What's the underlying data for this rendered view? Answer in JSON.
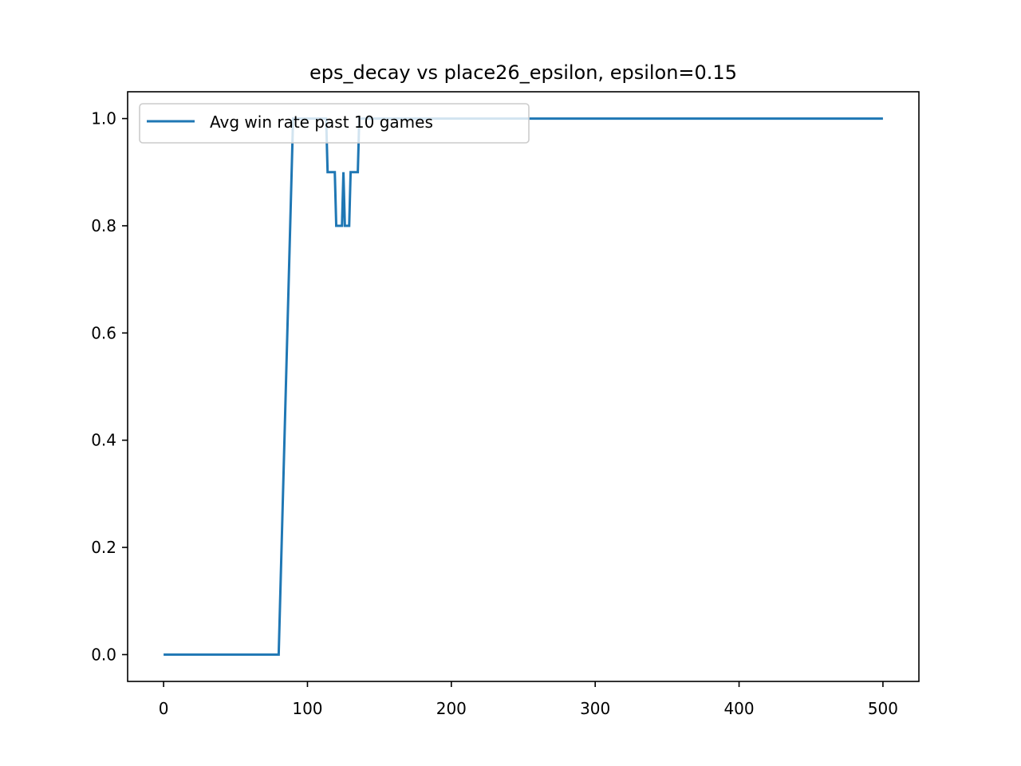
{
  "chart_data": {
    "type": "line",
    "title": "eps_decay vs place26_epsilon, epsilon=0.15",
    "xlabel": "",
    "ylabel": "",
    "xlim": [
      -25,
      525
    ],
    "ylim": [
      -0.05,
      1.05
    ],
    "xticks": [
      0,
      100,
      200,
      300,
      400,
      500
    ],
    "yticks": [
      0.0,
      0.2,
      0.4,
      0.6,
      0.8,
      1.0
    ],
    "xtick_labels": [
      "0",
      "100",
      "200",
      "300",
      "400",
      "500"
    ],
    "ytick_labels": [
      "0.0",
      "0.2",
      "0.4",
      "0.6",
      "0.8",
      "1.0"
    ],
    "grid": false,
    "legend_position": "upper-left",
    "series": [
      {
        "name": "Avg win rate past 10 games",
        "color": "#1f77b4",
        "x": [
          0,
          80,
          90,
          113,
          114,
          119,
          120,
          124,
          125,
          126,
          127,
          129,
          130,
          135,
          136,
          500
        ],
        "y": [
          0.0,
          0.0,
          1.0,
          1.0,
          0.9,
          0.9,
          0.8,
          0.8,
          0.9,
          0.8,
          0.8,
          0.8,
          0.9,
          0.9,
          1.0,
          1.0
        ]
      }
    ]
  }
}
